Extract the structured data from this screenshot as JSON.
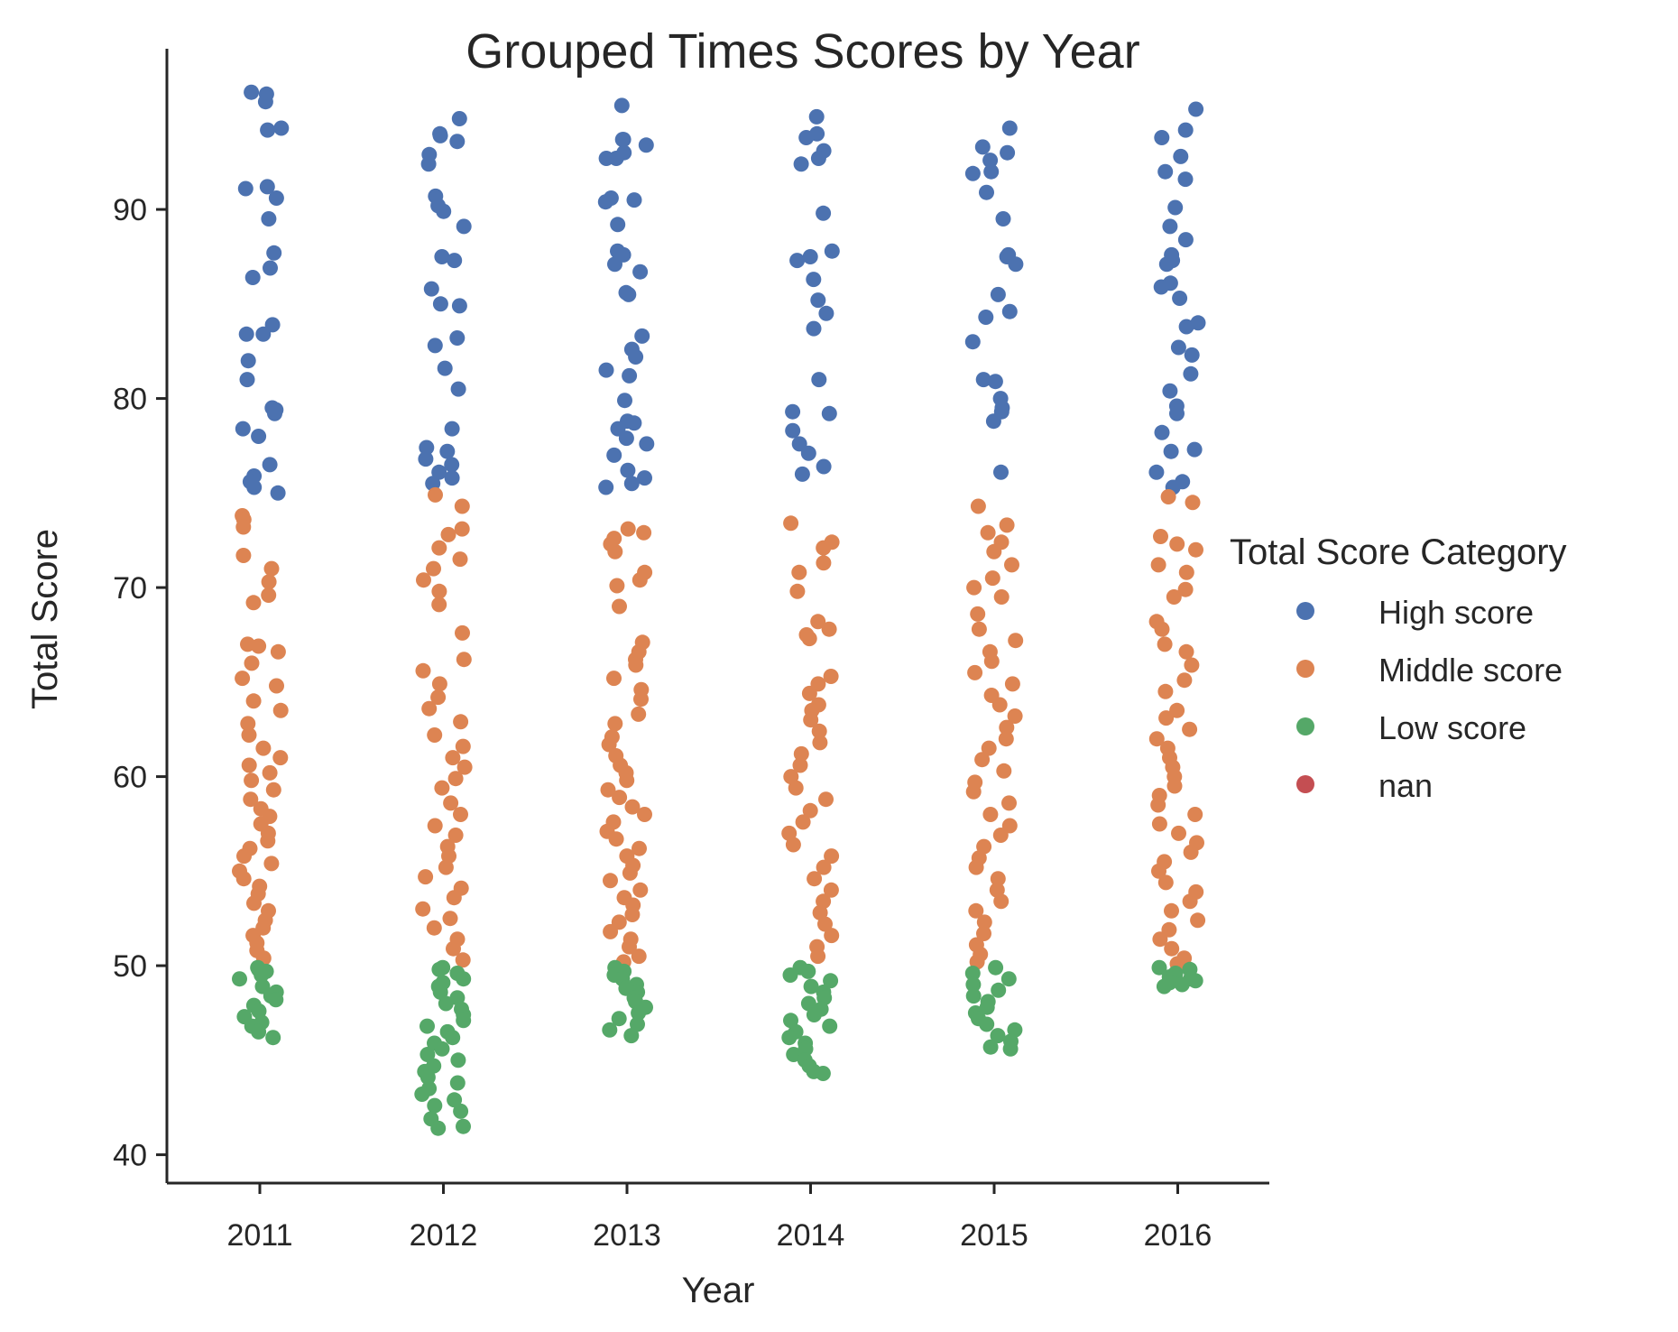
{
  "chart_data": {
    "type": "scatter",
    "title": "Grouped Times Scores by Year",
    "xlabel": "Year",
    "ylabel": "Total Score",
    "categories": [
      "2011",
      "2012",
      "2013",
      "2014",
      "2015",
      "2016"
    ],
    "ylim": [
      38.5,
      98.5
    ],
    "yticks": [
      40,
      50,
      60,
      70,
      80,
      90
    ],
    "legend": {
      "title": "Total Score Category",
      "placement": "right",
      "entries": [
        {
          "name": "High score",
          "color": "#4c72b0"
        },
        {
          "name": "Middle score",
          "color": "#dd8452"
        },
        {
          "name": "Low score",
          "color": "#55a868"
        },
        {
          "name": "nan",
          "color": "#c44e52"
        }
      ]
    },
    "series": [
      {
        "name": "High score",
        "color": "#4c72b0",
        "values": [
          [
            96.1,
            96.2,
            95.7,
            94.3,
            94.2,
            91.2,
            91.1,
            90.6,
            89.5,
            87.7,
            86.9,
            86.4,
            83.9,
            83.4,
            83.4,
            82.0,
            81.0,
            79.5,
            79.4,
            79.2,
            78.4,
            78.0,
            76.5,
            75.9,
            75.6,
            75.3,
            75.0
          ],
          [
            94.8,
            94.0,
            93.9,
            93.6,
            92.9,
            92.4,
            90.7,
            90.2,
            89.9,
            89.1,
            87.5,
            87.3,
            85.8,
            85.0,
            84.9,
            83.2,
            82.8,
            81.6,
            80.5,
            78.4,
            77.4,
            77.2,
            76.8,
            76.5,
            76.1,
            75.8,
            75.5
          ],
          [
            95.5,
            93.7,
            93.7,
            93.4,
            93.0,
            92.7,
            92.7,
            90.6,
            90.5,
            90.4,
            89.2,
            87.8,
            87.6,
            87.1,
            86.7,
            85.6,
            85.5,
            83.3,
            82.6,
            82.2,
            81.5,
            81.2,
            79.9,
            78.8,
            78.7,
            78.4,
            77.9,
            77.6,
            77.0,
            76.2,
            75.8,
            75.5,
            75.3
          ],
          [
            94.9,
            94.0,
            93.8,
            93.1,
            92.7,
            92.4,
            89.8,
            87.8,
            87.5,
            87.3,
            86.3,
            85.2,
            84.5,
            83.7,
            81.0,
            79.3,
            79.2,
            78.3,
            77.6,
            77.1,
            76.4,
            76.0
          ],
          [
            94.3,
            93.3,
            93.0,
            92.6,
            92.0,
            91.9,
            90.9,
            89.5,
            87.6,
            87.5,
            87.1,
            85.5,
            84.6,
            84.3,
            83.0,
            81.0,
            80.9,
            80.0,
            79.5,
            79.3,
            78.8,
            76.1
          ],
          [
            95.3,
            94.2,
            93.8,
            92.8,
            92.0,
            91.6,
            90.1,
            89.1,
            88.4,
            87.6,
            87.3,
            87.1,
            86.1,
            85.9,
            85.3,
            84.0,
            83.8,
            82.7,
            82.3,
            81.3,
            80.4,
            79.6,
            79.2,
            78.2,
            77.3,
            77.2,
            76.1,
            75.6,
            75.3
          ]
        ]
      },
      {
        "name": "Middle score",
        "color": "#dd8452",
        "values": [
          [
            73.8,
            73.6,
            73.2,
            71.7,
            71.0,
            70.3,
            69.6,
            69.2,
            67.0,
            66.9,
            66.6,
            66.0,
            65.2,
            64.8,
            64.0,
            63.5,
            62.8,
            62.2,
            61.5,
            61.0,
            60.6,
            60.2,
            59.8,
            59.3,
            58.8,
            58.3,
            57.9,
            57.5,
            57.0,
            56.6,
            56.2,
            55.8,
            55.4,
            55.0,
            54.6,
            54.2,
            53.8,
            53.3,
            52.9,
            52.4,
            52.0,
            51.6,
            51.2,
            50.8,
            50.4
          ],
          [
            74.9,
            74.3,
            73.1,
            72.8,
            72.1,
            71.5,
            71.0,
            70.4,
            69.8,
            69.1,
            67.6,
            66.2,
            65.6,
            64.9,
            64.2,
            63.6,
            62.9,
            62.2,
            61.6,
            61.0,
            60.5,
            59.9,
            59.4,
            58.6,
            58.0,
            57.4,
            56.9,
            56.3,
            55.8,
            55.2,
            54.7,
            54.1,
            53.6,
            53.0,
            52.5,
            52.0,
            51.4,
            50.9,
            50.3
          ],
          [
            73.1,
            72.9,
            72.6,
            72.3,
            71.9,
            70.8,
            70.4,
            70.1,
            69.0,
            67.1,
            66.6,
            66.2,
            65.9,
            65.2,
            64.6,
            64.1,
            63.3,
            62.8,
            62.1,
            61.7,
            61.1,
            60.6,
            60.2,
            59.8,
            59.3,
            58.9,
            58.4,
            58.0,
            57.6,
            57.1,
            56.7,
            56.2,
            55.8,
            55.3,
            54.9,
            54.5,
            54.0,
            53.6,
            53.2,
            52.7,
            52.3,
            51.8,
            51.4,
            51.0,
            50.5,
            50.2
          ],
          [
            73.4,
            72.4,
            72.1,
            71.3,
            70.8,
            69.8,
            68.2,
            67.8,
            67.5,
            67.3,
            65.3,
            64.9,
            64.4,
            63.8,
            63.5,
            63.0,
            62.4,
            61.8,
            61.2,
            60.6,
            60.0,
            59.4,
            58.8,
            58.2,
            57.6,
            57.0,
            56.4,
            55.8,
            55.2,
            54.6,
            54.0,
            53.4,
            52.8,
            52.2,
            51.6,
            51.0,
            50.5
          ],
          [
            74.3,
            73.3,
            72.9,
            72.4,
            71.9,
            71.2,
            70.5,
            70.0,
            69.5,
            68.6,
            67.8,
            67.2,
            66.6,
            66.1,
            65.5,
            64.9,
            64.3,
            63.8,
            63.2,
            62.6,
            62.0,
            61.5,
            60.9,
            60.3,
            59.7,
            59.2,
            58.6,
            58.0,
            57.4,
            56.9,
            56.3,
            55.7,
            55.2,
            54.6,
            54.0,
            53.4,
            52.9,
            52.3,
            51.7,
            51.1,
            50.6,
            50.2
          ],
          [
            74.8,
            74.5,
            72.7,
            72.3,
            72.0,
            71.2,
            70.8,
            69.9,
            69.5,
            68.2,
            67.8,
            67.0,
            66.6,
            65.9,
            65.1,
            64.5,
            63.5,
            63.1,
            62.5,
            62.0,
            61.5,
            61.0,
            60.5,
            60.0,
            59.5,
            59.0,
            58.5,
            58.0,
            57.5,
            57.0,
            56.5,
            56.0,
            55.5,
            55.0,
            54.4,
            53.9,
            53.4,
            52.9,
            52.4,
            51.9,
            51.4,
            50.9,
            50.4,
            50.1
          ]
        ]
      },
      {
        "name": "Low score",
        "color": "#55a868",
        "values": [
          [
            49.9,
            49.8,
            49.7,
            49.5,
            49.3,
            48.9,
            48.6,
            48.4,
            48.2,
            47.9,
            47.6,
            47.3,
            47.0,
            46.8,
            46.5,
            46.2
          ],
          [
            49.9,
            49.8,
            49.6,
            49.3,
            49.1,
            48.9,
            48.6,
            48.3,
            48.0,
            47.7,
            47.4,
            47.1,
            46.8,
            46.5,
            46.2,
            45.9,
            45.6,
            45.3,
            45.0,
            44.7,
            44.4,
            44.1,
            43.8,
            43.5,
            43.2,
            42.9,
            42.6,
            42.3,
            41.9,
            41.5,
            41.4
          ],
          [
            49.9,
            49.7,
            49.5,
            49.3,
            49.0,
            48.8,
            48.6,
            48.3,
            48.1,
            47.8,
            47.5,
            47.2,
            46.9,
            46.6,
            46.3
          ],
          [
            49.9,
            49.7,
            49.5,
            49.2,
            48.9,
            48.6,
            48.3,
            48.0,
            47.7,
            47.4,
            47.1,
            46.8,
            46.5,
            46.2,
            45.9,
            45.6,
            45.3,
            45.0,
            44.7,
            44.4,
            44.3
          ],
          [
            49.9,
            49.6,
            49.3,
            49.0,
            48.7,
            48.4,
            48.1,
            47.8,
            47.5,
            47.2,
            46.9,
            46.6,
            46.3,
            46.0,
            45.7,
            45.6
          ],
          [
            49.9,
            49.8,
            49.6,
            49.5,
            49.4,
            49.3,
            49.2,
            49.1,
            49.0,
            48.9
          ]
        ]
      },
      {
        "name": "nan",
        "color": "#c44e52",
        "values": [
          [],
          [],
          [],
          [],
          [],
          []
        ]
      }
    ]
  }
}
